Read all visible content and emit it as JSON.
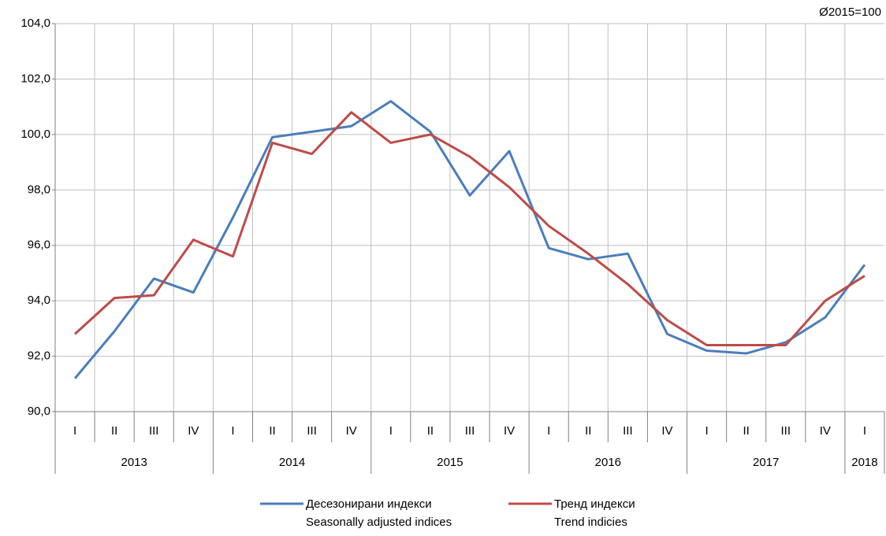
{
  "chart_data": {
    "type": "line",
    "note": "Ø2015=100",
    "categories": [
      "I",
      "II",
      "III",
      "IV",
      "I",
      "II",
      "III",
      "IV",
      "I",
      "II",
      "III",
      "IV",
      "I",
      "II",
      "III",
      "IV",
      "I",
      "II",
      "III",
      "IV",
      "I"
    ],
    "years": [
      "2013",
      null,
      null,
      null,
      "2014",
      null,
      null,
      null,
      "2015",
      null,
      null,
      null,
      "2016",
      null,
      null,
      null,
      "2017",
      null,
      null,
      null,
      "2018"
    ],
    "ylim": [
      90,
      104
    ],
    "yticks": [
      {
        "value": 90,
        "label": "90,0"
      },
      {
        "value": 92,
        "label": "92,0"
      },
      {
        "value": 94,
        "label": "94,0"
      },
      {
        "value": 96,
        "label": "96,0"
      },
      {
        "value": 98,
        "label": "98,0"
      },
      {
        "value": 100,
        "label": "100,0"
      },
      {
        "value": 102,
        "label": "102,0"
      },
      {
        "value": 104,
        "label": "104,0"
      }
    ],
    "grid": true,
    "series": [
      {
        "name": "Десезонирани индекси",
        "name_en": "Seasonally adjusted indices",
        "color": "#4a7ebb",
        "values": [
          91.2,
          92.9,
          94.8,
          94.3,
          97.0,
          99.9,
          100.1,
          100.3,
          101.2,
          100.1,
          97.8,
          99.4,
          95.9,
          95.5,
          95.7,
          92.8,
          92.2,
          92.1,
          92.5,
          93.4,
          95.3
        ]
      },
      {
        "name": "Тренд индекси",
        "name_en": "Trend indicies",
        "color": "#be4b48",
        "values": [
          92.8,
          94.1,
          94.2,
          96.2,
          95.6,
          99.7,
          99.3,
          100.8,
          99.7,
          100.0,
          99.2,
          98.1,
          96.7,
          95.7,
          94.6,
          93.3,
          92.4,
          92.4,
          92.4,
          94.0,
          94.9
        ]
      }
    ]
  }
}
